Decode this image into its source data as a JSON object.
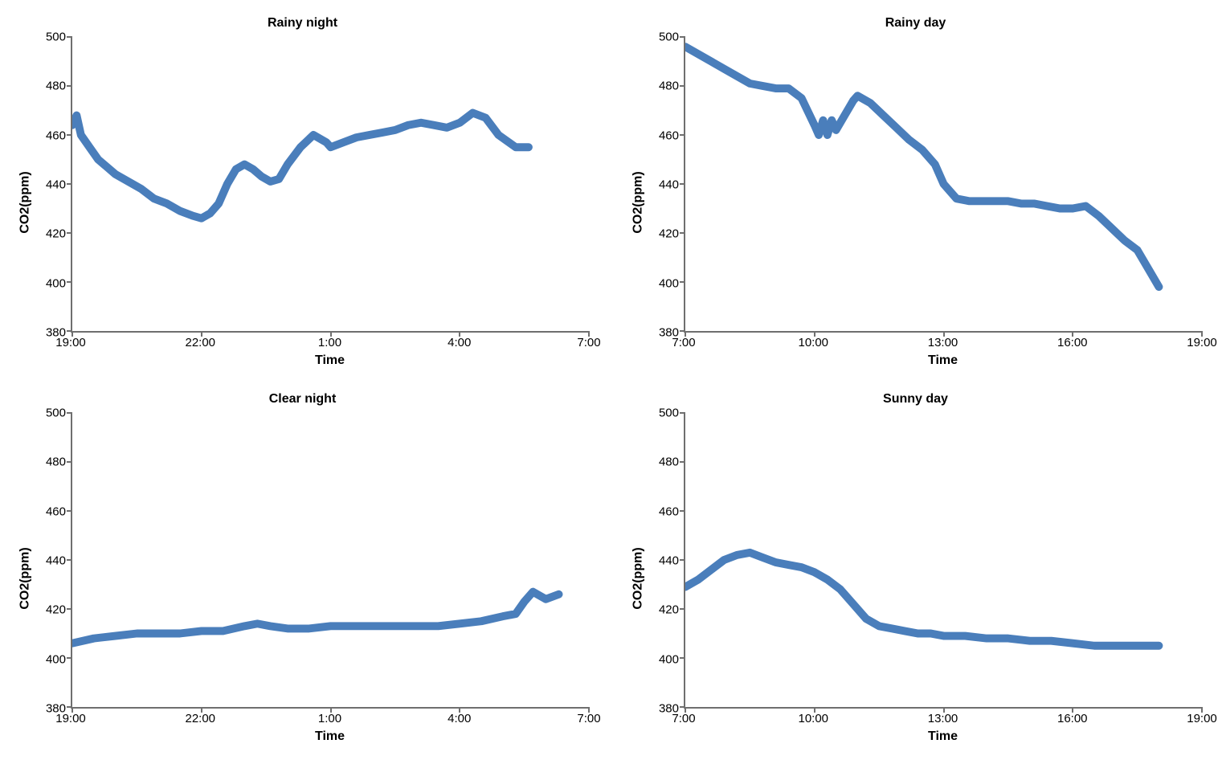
{
  "layout": {
    "rows": 2,
    "cols": 2,
    "gap_h": 50,
    "gap_v": 30
  },
  "common": {
    "ylabel": "CO2(ppm)",
    "xlabel": "Time",
    "ylim": [
      380,
      500
    ],
    "ytick_step": 20,
    "yticks": [
      500,
      480,
      460,
      440,
      420,
      400,
      380
    ],
    "line_color": "#4a7ebb",
    "line_width": 4.5,
    "axis_color": "#6f6f6f",
    "background_color": "#ffffff",
    "title_fontsize": 16,
    "label_fontsize": 16,
    "tick_fontsize": 15,
    "font_weight_title": "bold",
    "font_weight_label": "bold"
  },
  "charts": [
    {
      "id": "rainy-night",
      "title": "Rainy night",
      "type": "line",
      "xlim_hours": [
        19,
        31
      ],
      "xticks": [
        "19:00",
        "22:00",
        "1:00",
        "4:00",
        "7:00"
      ],
      "xtick_hours": [
        19,
        22,
        25,
        28,
        31
      ],
      "data_hours": [
        19.0,
        19.1,
        19.2,
        19.4,
        19.6,
        19.8,
        20.0,
        20.3,
        20.6,
        20.9,
        21.2,
        21.5,
        21.8,
        22.0,
        22.2,
        22.4,
        22.6,
        22.8,
        23.0,
        23.2,
        23.4,
        23.6,
        23.8,
        24.0,
        24.3,
        24.6,
        24.9,
        25.0,
        25.3,
        25.6,
        25.9,
        26.2,
        26.5,
        26.8,
        27.1,
        27.4,
        27.7,
        28.0,
        28.3,
        28.6,
        28.9,
        29.3,
        29.6
      ],
      "data_values": [
        464,
        468,
        460,
        455,
        450,
        447,
        444,
        441,
        438,
        434,
        432,
        429,
        427,
        426,
        428,
        432,
        440,
        446,
        448,
        446,
        443,
        441,
        442,
        448,
        455,
        460,
        457,
        455,
        457,
        459,
        460,
        461,
        462,
        464,
        465,
        464,
        463,
        465,
        469,
        467,
        460,
        455,
        455
      ]
    },
    {
      "id": "rainy-day",
      "title": "Rainy day",
      "type": "line",
      "xlim_hours": [
        7,
        19
      ],
      "xticks": [
        "7:00",
        "10:00",
        "13:00",
        "16:00",
        "19:00"
      ],
      "xtick_hours": [
        7,
        10,
        13,
        16,
        19
      ],
      "data_hours": [
        7.0,
        7.3,
        7.6,
        7.9,
        8.2,
        8.5,
        8.8,
        9.1,
        9.4,
        9.7,
        10.0,
        10.1,
        10.2,
        10.3,
        10.4,
        10.5,
        10.7,
        10.9,
        11.0,
        11.3,
        11.6,
        11.9,
        12.2,
        12.5,
        12.8,
        13.0,
        13.3,
        13.6,
        13.9,
        14.2,
        14.5,
        14.8,
        15.1,
        15.4,
        15.7,
        16.0,
        16.3,
        16.6,
        16.9,
        17.2,
        17.5,
        17.8,
        18.0
      ],
      "data_values": [
        496,
        493,
        490,
        487,
        484,
        481,
        480,
        479,
        479,
        475,
        464,
        460,
        466,
        460,
        466,
        462,
        468,
        474,
        476,
        473,
        468,
        463,
        458,
        454,
        448,
        440,
        434,
        433,
        433,
        433,
        433,
        432,
        432,
        431,
        430,
        430,
        431,
        427,
        422,
        417,
        413,
        404,
        398
      ]
    },
    {
      "id": "clear-night",
      "title": "Clear night",
      "type": "line",
      "xlim_hours": [
        19,
        31
      ],
      "xticks": [
        "19:00",
        "22:00",
        "1:00",
        "4:00",
        "7:00"
      ],
      "xtick_hours": [
        19,
        22,
        25,
        28,
        31
      ],
      "data_hours": [
        19.0,
        19.5,
        20.0,
        20.5,
        21.0,
        21.5,
        22.0,
        22.5,
        23.0,
        23.3,
        23.6,
        24.0,
        24.5,
        25.0,
        25.5,
        26.0,
        26.5,
        27.0,
        27.5,
        28.0,
        28.5,
        29.0,
        29.3,
        29.5,
        29.7,
        30.0,
        30.3
      ],
      "data_values": [
        406,
        408,
        409,
        410,
        410,
        410,
        411,
        411,
        413,
        414,
        413,
        412,
        412,
        413,
        413,
        413,
        413,
        413,
        413,
        414,
        415,
        417,
        418,
        423,
        427,
        424,
        426
      ]
    },
    {
      "id": "sunny-day",
      "title": "Sunny day",
      "type": "line",
      "xlim_hours": [
        7,
        19
      ],
      "xticks": [
        "7:00",
        "10:00",
        "13:00",
        "16:00",
        "19:00"
      ],
      "xtick_hours": [
        7,
        10,
        13,
        16,
        19
      ],
      "data_hours": [
        7.0,
        7.3,
        7.6,
        7.9,
        8.2,
        8.5,
        8.8,
        9.1,
        9.4,
        9.7,
        10.0,
        10.3,
        10.6,
        10.9,
        11.2,
        11.5,
        11.8,
        12.1,
        12.4,
        12.7,
        13.0,
        13.5,
        14.0,
        14.5,
        15.0,
        15.5,
        16.0,
        16.5,
        17.0,
        17.5,
        18.0
      ],
      "data_values": [
        429,
        432,
        436,
        440,
        442,
        443,
        441,
        439,
        438,
        437,
        435,
        432,
        428,
        422,
        416,
        413,
        412,
        411,
        410,
        410,
        409,
        409,
        408,
        408,
        407,
        407,
        406,
        405,
        405,
        405,
        405
      ]
    }
  ]
}
